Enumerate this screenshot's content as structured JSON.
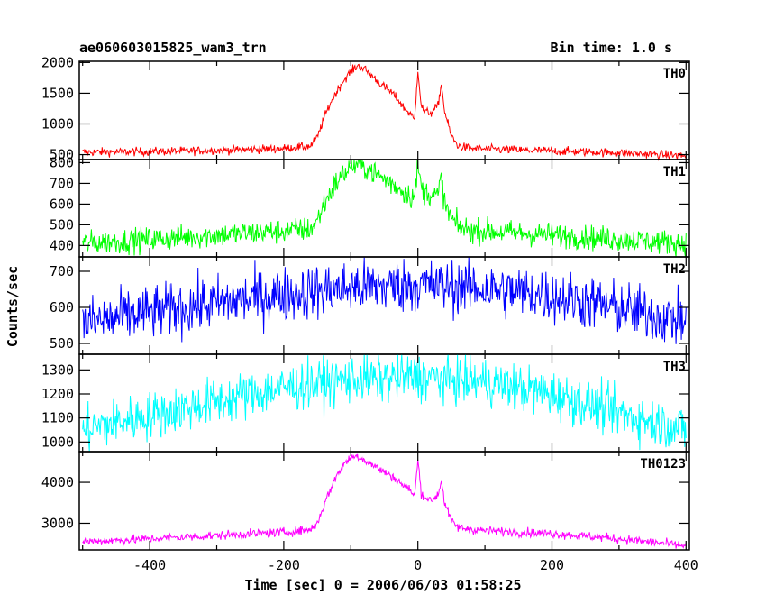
{
  "chart_data": {
    "type": "line",
    "title": "ae060603015825_wam3_trn",
    "bin_time": "Bin time: 1.0 s",
    "xlabel": "Time [sec] 0 = 2006/06/03 01:58:25",
    "ylabel": "Counts/sec",
    "xlim": [
      -505,
      405
    ],
    "x_ticks": [
      -400,
      -200,
      0,
      200,
      400
    ],
    "grid": false,
    "panels": [
      {
        "name": "TH0",
        "color": "#ff0000",
        "ylim": [
          420,
          2020
        ],
        "y_ticks": [
          500,
          1000,
          1500,
          2000
        ],
        "x": [
          -500,
          -400,
          -300,
          -200,
          -160,
          -150,
          -140,
          -130,
          -120,
          -110,
          -100,
          -90,
          -80,
          -70,
          -60,
          -50,
          -40,
          -30,
          -20,
          -10,
          -5,
          0,
          5,
          10,
          20,
          30,
          35,
          40,
          50,
          60,
          80,
          100,
          200,
          300,
          400
        ],
        "values": [
          540,
          550,
          570,
          600,
          640,
          780,
          1100,
          1350,
          1550,
          1720,
          1850,
          1950,
          1900,
          1800,
          1700,
          1600,
          1520,
          1400,
          1250,
          1150,
          1050,
          1900,
          1300,
          1200,
          1180,
          1300,
          1650,
          1200,
          800,
          640,
          600,
          590,
          560,
          530,
          480
        ],
        "noise": 35
      },
      {
        "name": "TH1",
        "color": "#00ff00",
        "ylim": [
          345,
          815
        ],
        "y_ticks": [
          400,
          500,
          600,
          700,
          800
        ],
        "x": [
          -500,
          -400,
          -300,
          -200,
          -160,
          -150,
          -140,
          -130,
          -120,
          -110,
          -100,
          -90,
          -80,
          -70,
          -60,
          -50,
          -40,
          -30,
          -20,
          -10,
          -5,
          0,
          5,
          10,
          20,
          30,
          35,
          40,
          50,
          60,
          80,
          100,
          200,
          300,
          400
        ],
        "values": [
          410,
          430,
          450,
          470,
          480,
          520,
          600,
          660,
          710,
          750,
          780,
          795,
          780,
          760,
          740,
          720,
          700,
          680,
          660,
          640,
          630,
          790,
          680,
          660,
          650,
          640,
          730,
          600,
          530,
          490,
          470,
          470,
          450,
          430,
          410
        ],
        "noise": 30
      },
      {
        "name": "TH2",
        "color": "#0000ff",
        "ylim": [
          470,
          740
        ],
        "y_ticks": [
          500,
          600,
          700
        ],
        "x": [
          -500,
          -400,
          -300,
          -200,
          -100,
          0,
          100,
          200,
          300,
          400
        ],
        "values": [
          555,
          585,
          612,
          636,
          655,
          662,
          652,
          632,
          598,
          560
        ],
        "noise": 38
      },
      {
        "name": "TH3",
        "color": "#00ffff",
        "ylim": [
          960,
          1365
        ],
        "y_ticks": [
          1000,
          1100,
          1200,
          1300
        ],
        "x": [
          -500,
          -400,
          -300,
          -200,
          -100,
          0,
          100,
          200,
          300,
          400
        ],
        "values": [
          1050,
          1110,
          1170,
          1225,
          1260,
          1270,
          1250,
          1200,
          1120,
          1050
        ],
        "noise": 50
      },
      {
        "name": "TH0123",
        "color": "#ff00ff",
        "ylim": [
          2350,
          4750
        ],
        "y_ticks": [
          3000,
          4000
        ],
        "x": [
          -500,
          -400,
          -300,
          -200,
          -160,
          -150,
          -140,
          -130,
          -120,
          -110,
          -100,
          -90,
          -80,
          -70,
          -60,
          -50,
          -40,
          -30,
          -20,
          -10,
          -5,
          0,
          5,
          10,
          20,
          30,
          35,
          40,
          50,
          60,
          80,
          100,
          200,
          300,
          400
        ],
        "values": [
          2550,
          2620,
          2700,
          2780,
          2850,
          3000,
          3450,
          3850,
          4200,
          4450,
          4600,
          4650,
          4550,
          4450,
          4350,
          4250,
          4150,
          4050,
          3900,
          3800,
          3650,
          4550,
          3750,
          3650,
          3550,
          3700,
          4050,
          3500,
          3050,
          2900,
          2850,
          2820,
          2750,
          2620,
          2450
        ],
        "noise": 55
      }
    ]
  }
}
